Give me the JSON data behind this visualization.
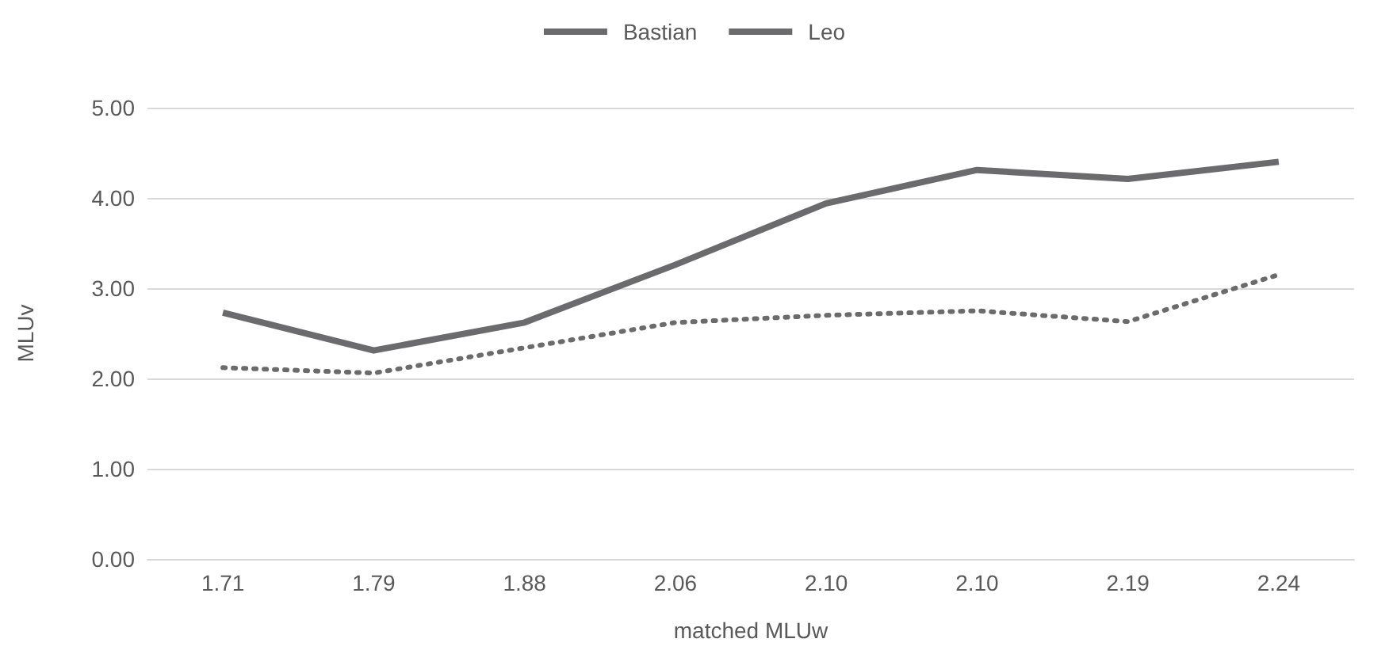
{
  "chart_data": {
    "type": "line",
    "xlabel": "matched MLUw",
    "ylabel": "MLUv",
    "categories": [
      "1.71",
      "1.79",
      "1.88",
      "2.06",
      "2.10",
      "2.10",
      "2.19",
      "2.24"
    ],
    "series": [
      {
        "name": "Bastian",
        "color": "#6b6b6e",
        "line_style": "dotted",
        "values": [
          2.12,
          2.06,
          2.34,
          2.62,
          2.7,
          2.75,
          2.63,
          3.15
        ]
      },
      {
        "name": "Leo",
        "color": "#6b6b6e",
        "line_style": "solid",
        "values": [
          2.73,
          2.31,
          2.62,
          3.26,
          3.94,
          4.31,
          4.21,
          4.4
        ]
      }
    ],
    "ylim": [
      0,
      5
    ],
    "yticks": [
      {
        "value": 0,
        "label": "0.00"
      },
      {
        "value": 1,
        "label": "1.00"
      },
      {
        "value": 2,
        "label": "2.00"
      },
      {
        "value": 3,
        "label": "3.00"
      },
      {
        "value": 4,
        "label": "4.00"
      },
      {
        "value": 5,
        "label": "5.00"
      }
    ],
    "grid": "y",
    "legend": "top",
    "marker": "none"
  }
}
